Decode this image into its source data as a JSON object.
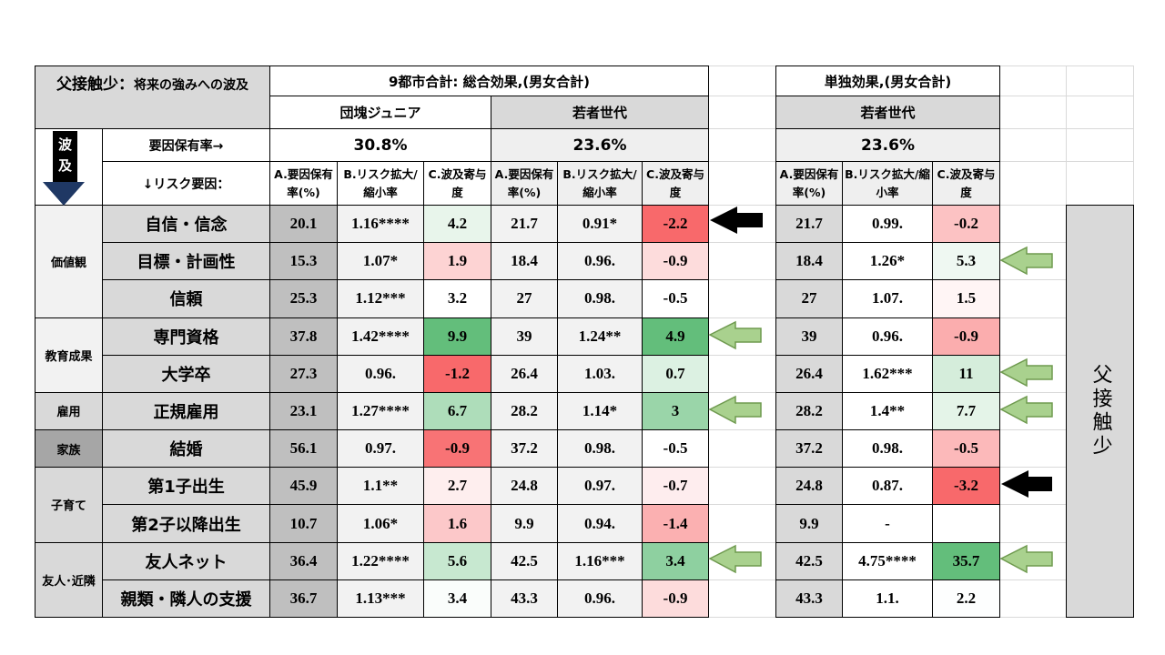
{
  "header": {
    "title_main": "父接触少：",
    "title_sub": "将来の強みへの波及",
    "total_effect": "9都市合計: 総合効果,(男女合計)",
    "single_effect": "単独効果,(男女合計)",
    "generations": [
      "団塊ジュニア",
      "若者世代",
      "若者世代"
    ],
    "rate_label": "要因保有率→",
    "rates": [
      "30.8%",
      "23.6%",
      "23.6%"
    ],
    "risk_label": "↓リスク要因：",
    "arrow_label": "波及",
    "column_headers": [
      "A.要因保有率(%)",
      "B.リスク拡大/縮小率",
      "C.波及寄与度"
    ],
    "side_label": "父接触少"
  },
  "table": {
    "groups": [
      {
        "name": "価値観",
        "rows": [
          {
            "factor": "自信・信念",
            "values": [
              "20.1",
              "1.16****",
              "4.2",
              "21.7",
              "0.91*",
              "-2.2",
              "21.7",
              "0.99.",
              "-0.2"
            ]
          },
          {
            "factor": "目標・計画性",
            "values": [
              "15.3",
              "1.07*",
              "1.9",
              "18.4",
              "0.96.",
              "-0.9",
              "18.4",
              "1.26*",
              "5.3"
            ]
          },
          {
            "factor": "信頼",
            "values": [
              "25.3",
              "1.12***",
              "3.2",
              "27",
              "0.98.",
              "-0.5",
              "27",
              "1.07.",
              "1.5"
            ]
          }
        ]
      },
      {
        "name": "教育成果",
        "rows": [
          {
            "factor": "専門資格",
            "values": [
              "37.8",
              "1.42****",
              "9.9",
              "39",
              "1.24**",
              "4.9",
              "39",
              "0.96.",
              "-0.9"
            ]
          },
          {
            "factor": "大学卒",
            "values": [
              "27.3",
              "0.96.",
              "-1.2",
              "26.4",
              "1.03.",
              "0.7",
              "26.4",
              "1.62***",
              "11"
            ]
          }
        ]
      },
      {
        "name": "雇用",
        "rows": [
          {
            "factor": "正規雇用",
            "values": [
              "23.1",
              "1.27****",
              "6.7",
              "28.2",
              "1.14*",
              "3",
              "28.2",
              "1.4**",
              "7.7"
            ]
          }
        ]
      },
      {
        "name": "家族",
        "rows": [
          {
            "factor": "結婚",
            "values": [
              "56.1",
              "0.97.",
              "-0.9",
              "37.2",
              "0.98.",
              "-0.5",
              "37.2",
              "0.98.",
              "-0.5"
            ]
          }
        ]
      },
      {
        "name": "子育て",
        "rows": [
          {
            "factor": "第1子出生",
            "values": [
              "45.9",
              "1.1**",
              "2.7",
              "24.8",
              "0.97.",
              "-0.7",
              "24.8",
              "0.87.",
              "-3.2"
            ]
          },
          {
            "factor": "第2子以降出生",
            "values": [
              "10.7",
              "1.06*",
              "1.6",
              "9.9",
              "0.94.",
              "-1.4",
              "9.9",
              "-",
              null
            ]
          }
        ]
      },
      {
        "name": "友人･近隣",
        "rows": [
          {
            "factor": "友人ネット",
            "values": [
              "36.4",
              "1.22****",
              "5.6",
              "42.5",
              "1.16***",
              "3.4",
              "42.5",
              "4.75****",
              "35.7"
            ]
          },
          {
            "factor": "親類・隣人の支援",
            "values": [
              "36.7",
              "1.13***",
              "3.4",
              "43.3",
              "0.96.",
              "-0.9",
              "43.3",
              "1.1.",
              "2.2"
            ]
          }
        ]
      }
    ]
  }
}
